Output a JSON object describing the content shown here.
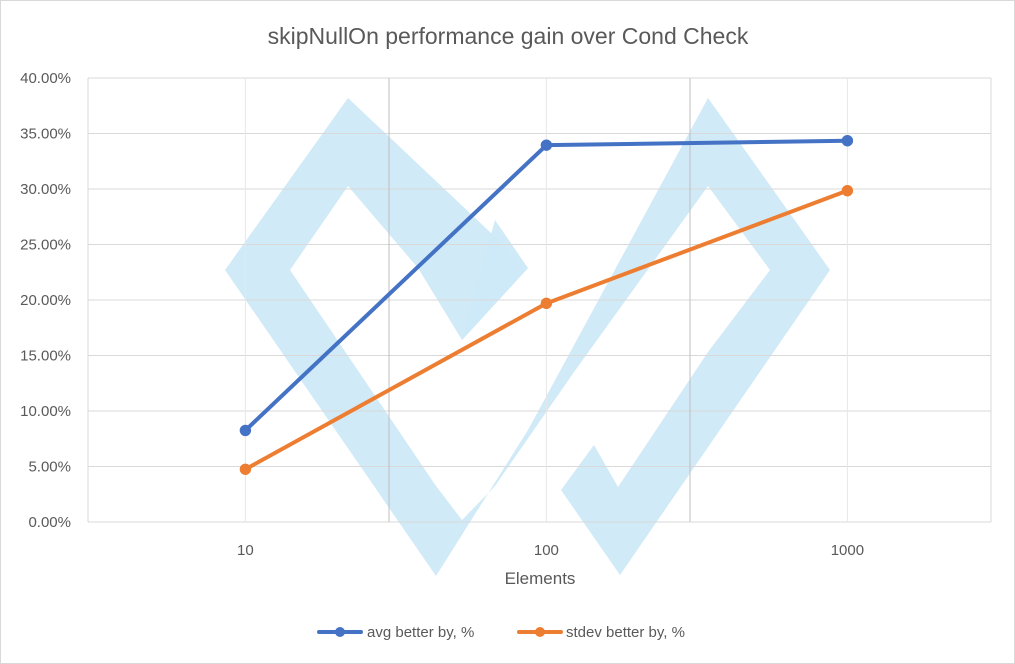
{
  "chart_data": {
    "type": "line",
    "title": "skipNullOn performance gain over Cond Check",
    "xlabel": "Elements",
    "ylabel": "",
    "x_scale": "log",
    "x": [
      10,
      100,
      1000
    ],
    "x_tick_labels": [
      "10",
      "100",
      "1000"
    ],
    "xlim": [
      3,
      3000
    ],
    "ylim": [
      0,
      0.4
    ],
    "y_tick_values": [
      0,
      0.05,
      0.1,
      0.15,
      0.2,
      0.25,
      0.3,
      0.35,
      0.4
    ],
    "y_tick_labels": [
      "0.00%",
      "5.00%",
      "10.00%",
      "15.00%",
      "20.00%",
      "25.00%",
      "30.00%",
      "35.00%",
      "40.00%"
    ],
    "grid": true,
    "legend_position": "bottom",
    "series": [
      {
        "name": "avg better by, %",
        "color": "#4472C4",
        "values": [
          0.0825,
          0.3395,
          0.3435
        ]
      },
      {
        "name": "stdev better by, %",
        "color": "#ED7D31",
        "values": [
          0.0475,
          0.197,
          0.2985
        ]
      }
    ],
    "watermark": {
      "shape": "interlocking-diamond-logo",
      "color": "#CDE9F8"
    }
  }
}
